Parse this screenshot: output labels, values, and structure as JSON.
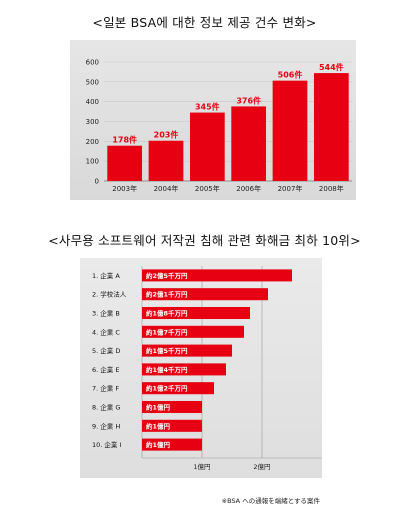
{
  "charts": {
    "top": {
      "title": "<일본 BSA에 대한 정보 제공 건수 변화>",
      "chart_data": {
        "type": "bar",
        "categories": [
          "2003年",
          "2004年",
          "2005年",
          "2006年",
          "2007年",
          "2008年"
        ],
        "values": [
          178,
          203,
          345,
          376,
          506,
          544
        ],
        "data_labels": [
          "178件",
          "203件",
          "345件",
          "376件",
          "506件",
          "544件"
        ],
        "yticks": [
          "0",
          "100",
          "200",
          "300",
          "400",
          "500",
          "600"
        ],
        "ylim": [
          0,
          600
        ],
        "bar_color": "#e60012",
        "label_color": "#e60012",
        "grid": true
      }
    },
    "bottom": {
      "title": "<사무용 소프트웨어 저작권 침해 관련 화해금 최하 10위>",
      "chart_data": {
        "type": "bar",
        "orientation": "horizontal",
        "categories": [
          "1. 企業 A",
          "2. 学校法人",
          "3. 企業 B",
          "4. 企業 C",
          "5. 企業 D",
          "6. 企業 E",
          "7. 企業 F",
          "8. 企業 G",
          "9. 企業 H",
          "10. 企業 I"
        ],
        "values": [
          25000,
          21000,
          18000,
          17000,
          15000,
          14000,
          12000,
          10000,
          10000,
          10000
        ],
        "data_labels": [
          "約2億5千万円",
          "約2億1千万円",
          "約1億8千万円",
          "約1億7千万円",
          "約1億5千万円",
          "約1億4千万円",
          "約1億2千万円",
          "約1億円",
          "約1億円",
          "約1億円"
        ],
        "xticks": [
          {
            "value": 10000,
            "label": "1億円"
          },
          {
            "value": 20000,
            "label": "2億円"
          }
        ],
        "xlim": [
          0,
          30000
        ],
        "bar_color": "#e60012",
        "label_color": "#ffffff"
      },
      "footnote": "※BSA への通報を端緒とする案件"
    }
  }
}
